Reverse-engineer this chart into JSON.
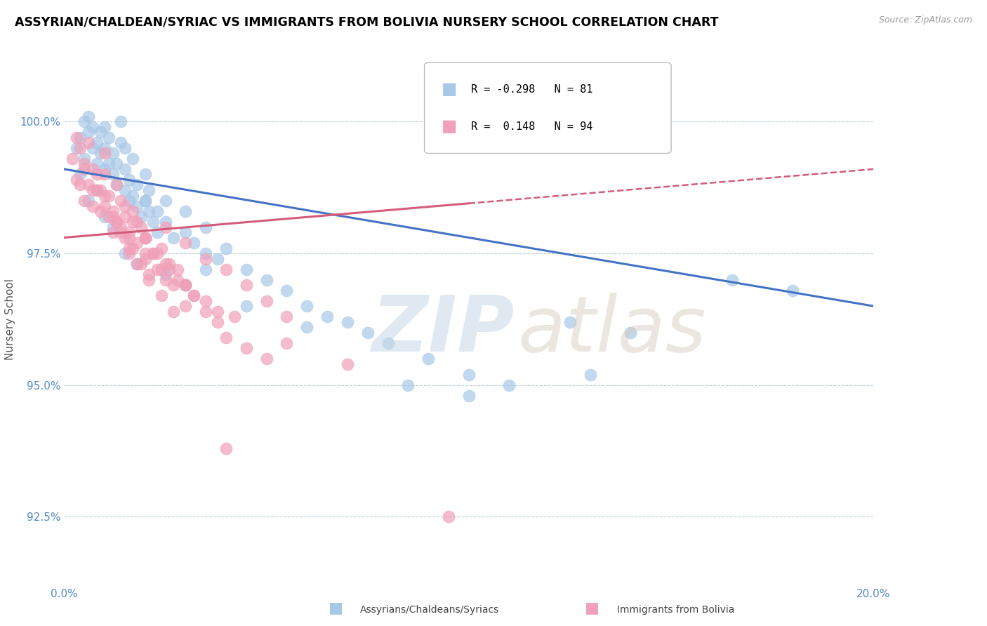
{
  "title": "ASSYRIAN/CHALDEAN/SYRIAC VS IMMIGRANTS FROM BOLIVIA NURSERY SCHOOL CORRELATION CHART",
  "source": "Source: ZipAtlas.com",
  "xmin": 0.0,
  "xmax": 20.0,
  "ymin": 91.2,
  "ymax": 101.3,
  "yticks": [
    92.5,
    95.0,
    97.5,
    100.0
  ],
  "legend_blue_r": "-0.298",
  "legend_blue_n": "81",
  "legend_pink_r": "0.148",
  "legend_pink_n": "94",
  "blue_color": "#a8c8e8",
  "pink_color": "#f0a0b8",
  "blue_line_color": "#4472c4",
  "pink_line_color": "#d45c7a",
  "blue_line_y0": 99.1,
  "blue_line_y1": 96.5,
  "pink_line_y0": 97.8,
  "pink_line_y1": 99.1,
  "blue_scatter_x": [
    0.3,
    0.4,
    0.5,
    0.5,
    0.6,
    0.6,
    0.7,
    0.7,
    0.8,
    0.8,
    0.9,
    0.9,
    1.0,
    1.0,
    1.0,
    1.1,
    1.1,
    1.2,
    1.2,
    1.3,
    1.3,
    1.4,
    1.4,
    1.5,
    1.5,
    1.5,
    1.6,
    1.6,
    1.7,
    1.7,
    1.8,
    1.8,
    1.9,
    2.0,
    2.0,
    2.1,
    2.1,
    2.2,
    2.3,
    2.3,
    2.5,
    2.5,
    2.7,
    3.0,
    3.0,
    3.2,
    3.5,
    3.5,
    3.8,
    4.0,
    4.5,
    5.0,
    5.5,
    6.0,
    6.5,
    7.0,
    7.5,
    8.0,
    9.0,
    10.0,
    11.0,
    12.5,
    14.0,
    16.5,
    18.0,
    0.4,
    0.6,
    0.8,
    1.0,
    1.2,
    1.5,
    1.8,
    2.0,
    2.5,
    3.0,
    3.5,
    4.5,
    6.0,
    8.5,
    10.0,
    13.0
  ],
  "blue_scatter_y": [
    99.5,
    99.7,
    99.3,
    100.0,
    99.8,
    100.1,
    99.5,
    99.9,
    99.2,
    99.6,
    99.4,
    99.8,
    99.1,
    99.5,
    99.9,
    99.2,
    99.7,
    99.0,
    99.4,
    98.8,
    99.2,
    99.6,
    100.0,
    98.7,
    99.1,
    99.5,
    98.5,
    98.9,
    99.3,
    98.6,
    98.4,
    98.8,
    98.2,
    98.5,
    99.0,
    98.3,
    98.7,
    98.1,
    97.9,
    98.3,
    98.1,
    98.5,
    97.8,
    97.9,
    98.3,
    97.7,
    97.5,
    98.0,
    97.4,
    97.6,
    97.2,
    97.0,
    96.8,
    96.5,
    96.3,
    96.2,
    96.0,
    95.8,
    95.5,
    95.2,
    95.0,
    96.2,
    96.0,
    97.0,
    96.8,
    99.0,
    98.5,
    98.7,
    98.2,
    98.0,
    97.5,
    97.3,
    98.5,
    97.1,
    96.9,
    97.2,
    96.5,
    96.1,
    95.0,
    94.8,
    95.2
  ],
  "pink_scatter_x": [
    0.2,
    0.3,
    0.3,
    0.4,
    0.4,
    0.5,
    0.5,
    0.6,
    0.6,
    0.7,
    0.7,
    0.8,
    0.8,
    0.9,
    0.9,
    1.0,
    1.0,
    1.0,
    1.1,
    1.1,
    1.2,
    1.2,
    1.3,
    1.3,
    1.4,
    1.4,
    1.5,
    1.5,
    1.6,
    1.6,
    1.7,
    1.7,
    1.8,
    1.8,
    1.9,
    2.0,
    2.0,
    2.1,
    2.2,
    2.3,
    2.4,
    2.5,
    2.6,
    2.7,
    2.8,
    3.0,
    3.0,
    3.2,
    3.5,
    3.8,
    4.0,
    4.5,
    5.0,
    2.5,
    3.0,
    3.5,
    4.0,
    4.5,
    5.0,
    5.5,
    1.8,
    2.0,
    2.2,
    2.5,
    2.8,
    3.2,
    3.8,
    1.5,
    1.7,
    2.0,
    2.3,
    2.6,
    3.0,
    3.5,
    4.2,
    5.5,
    7.0,
    9.5,
    1.2,
    1.4,
    1.6,
    1.9,
    2.1,
    2.4,
    2.7,
    0.5,
    0.7,
    1.0,
    1.3,
    1.6,
    2.0,
    2.4,
    3.0,
    4.0
  ],
  "pink_scatter_y": [
    99.3,
    99.7,
    98.9,
    99.5,
    98.8,
    99.2,
    98.5,
    99.6,
    98.8,
    99.1,
    98.4,
    98.7,
    99.0,
    98.3,
    98.7,
    99.4,
    98.6,
    99.0,
    98.2,
    98.6,
    97.9,
    98.3,
    98.8,
    98.1,
    98.5,
    98.0,
    97.8,
    98.2,
    97.5,
    97.9,
    98.3,
    97.6,
    97.3,
    97.7,
    98.0,
    97.4,
    97.8,
    97.1,
    97.5,
    97.2,
    97.6,
    97.0,
    97.3,
    96.9,
    97.2,
    96.5,
    96.9,
    96.7,
    96.4,
    96.2,
    95.9,
    95.7,
    95.5,
    98.0,
    97.7,
    97.4,
    97.2,
    96.9,
    96.6,
    96.3,
    98.1,
    97.8,
    97.5,
    97.3,
    97.0,
    96.7,
    96.4,
    98.4,
    98.1,
    97.8,
    97.5,
    97.2,
    96.9,
    96.6,
    96.3,
    95.8,
    95.4,
    92.5,
    98.2,
    97.9,
    97.6,
    97.3,
    97.0,
    96.7,
    96.4,
    99.1,
    98.7,
    98.4,
    98.1,
    97.8,
    97.5,
    97.2,
    96.9,
    93.8
  ]
}
